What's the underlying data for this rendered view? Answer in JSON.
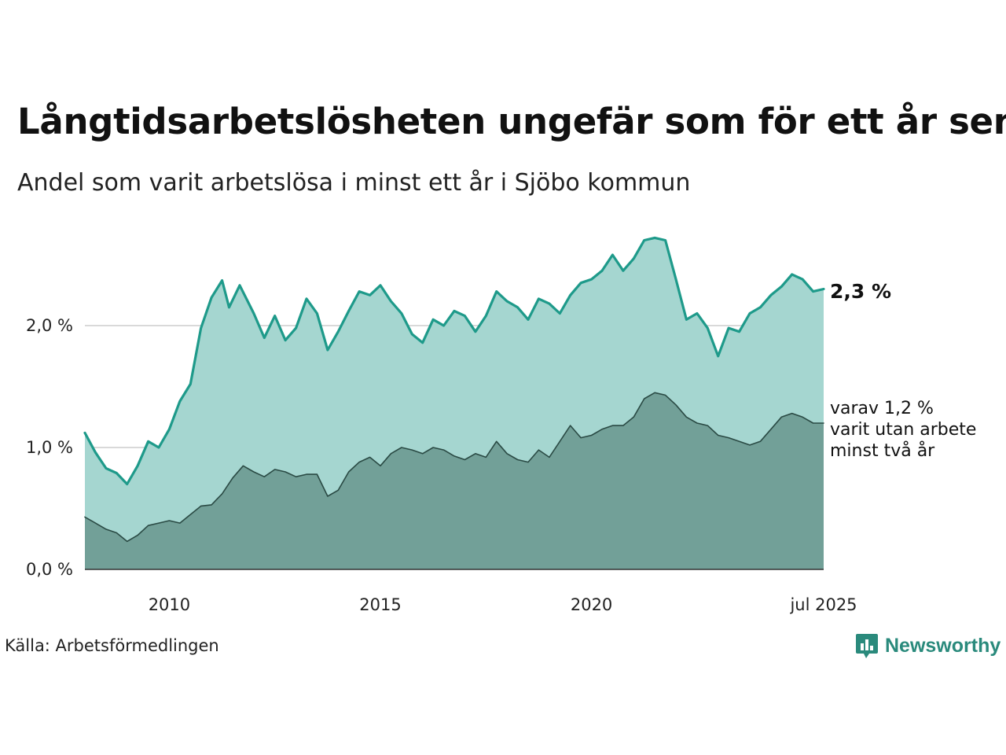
{
  "title": "Långtidsarbetslösheten ungefär som för ett år sen",
  "subtitle": "Andel som varit arbetslösa i minst ett år i Sjöbo kommun",
  "source": "Källa: Arbetsförmedlingen",
  "brand": {
    "name": "Newsworthy",
    "icon": "newsworthy-chart-icon",
    "color": "#2a8a7c"
  },
  "chart_data": {
    "type": "area",
    "xlim": [
      "2008-01",
      "2025-07"
    ],
    "ylim": [
      0,
      2.8
    ],
    "grid": true,
    "y_ticks": [
      {
        "value": 0,
        "label": "0,0 %"
      },
      {
        "value": 1,
        "label": "1,0 %"
      },
      {
        "value": 2,
        "label": "2,0 %"
      }
    ],
    "x_ticks": [
      {
        "value": "2010-01",
        "label": "2010"
      },
      {
        "value": "2015-01",
        "label": "2015"
      },
      {
        "value": "2020-01",
        "label": "2020"
      },
      {
        "value": "2025-07",
        "label": "jul 2025"
      }
    ],
    "end_label": "2,3 %",
    "note_lines": [
      "varav 1,2 %",
      "varit utan arbete",
      "minst två år"
    ],
    "colors": {
      "total_line": "#1e9a8a",
      "total_fill": "#a5d6d0",
      "long_line": "#2a4a44",
      "long_fill": "#72a098"
    },
    "series": [
      {
        "key": "total",
        "points": [
          [
            "2008-01",
            1.12
          ],
          [
            "2008-04",
            0.96
          ],
          [
            "2008-07",
            0.83
          ],
          [
            "2008-10",
            0.79
          ],
          [
            "2009-01",
            0.7
          ],
          [
            "2009-04",
            0.85
          ],
          [
            "2009-07",
            1.05
          ],
          [
            "2009-10",
            1.0
          ],
          [
            "2010-01",
            1.15
          ],
          [
            "2010-04",
            1.38
          ],
          [
            "2010-07",
            1.52
          ],
          [
            "2010-10",
            1.98
          ],
          [
            "2011-01",
            2.23
          ],
          [
            "2011-04",
            2.37
          ],
          [
            "2011-06",
            2.15
          ],
          [
            "2011-09",
            2.33
          ],
          [
            "2012-01",
            2.1
          ],
          [
            "2012-04",
            1.9
          ],
          [
            "2012-07",
            2.08
          ],
          [
            "2012-10",
            1.88
          ],
          [
            "2013-01",
            1.98
          ],
          [
            "2013-04",
            2.22
          ],
          [
            "2013-07",
            2.1
          ],
          [
            "2013-10",
            1.8
          ],
          [
            "2014-01",
            1.95
          ],
          [
            "2014-04",
            2.12
          ],
          [
            "2014-07",
            2.28
          ],
          [
            "2014-10",
            2.25
          ],
          [
            "2015-01",
            2.33
          ],
          [
            "2015-04",
            2.2
          ],
          [
            "2015-07",
            2.1
          ],
          [
            "2015-10",
            1.93
          ],
          [
            "2016-01",
            1.86
          ],
          [
            "2016-04",
            2.05
          ],
          [
            "2016-07",
            2.0
          ],
          [
            "2016-10",
            2.12
          ],
          [
            "2017-01",
            2.08
          ],
          [
            "2017-04",
            1.95
          ],
          [
            "2017-07",
            2.08
          ],
          [
            "2017-10",
            2.28
          ],
          [
            "2018-01",
            2.2
          ],
          [
            "2018-04",
            2.15
          ],
          [
            "2018-07",
            2.05
          ],
          [
            "2018-10",
            2.22
          ],
          [
            "2019-01",
            2.18
          ],
          [
            "2019-04",
            2.1
          ],
          [
            "2019-07",
            2.25
          ],
          [
            "2019-10",
            2.35
          ],
          [
            "2020-01",
            2.38
          ],
          [
            "2020-04",
            2.45
          ],
          [
            "2020-07",
            2.58
          ],
          [
            "2020-10",
            2.45
          ],
          [
            "2021-01",
            2.55
          ],
          [
            "2021-04",
            2.7
          ],
          [
            "2021-07",
            2.72
          ],
          [
            "2021-10",
            2.7
          ],
          [
            "2022-01",
            2.38
          ],
          [
            "2022-04",
            2.05
          ],
          [
            "2022-07",
            2.1
          ],
          [
            "2022-10",
            1.98
          ],
          [
            "2023-01",
            1.75
          ],
          [
            "2023-04",
            1.98
          ],
          [
            "2023-07",
            1.95
          ],
          [
            "2023-10",
            2.1
          ],
          [
            "2024-01",
            2.15
          ],
          [
            "2024-04",
            2.25
          ],
          [
            "2024-07",
            2.32
          ],
          [
            "2024-10",
            2.42
          ],
          [
            "2025-01",
            2.38
          ],
          [
            "2025-04",
            2.28
          ],
          [
            "2025-07",
            2.3
          ]
        ]
      },
      {
        "key": "long",
        "points": [
          [
            "2008-01",
            0.43
          ],
          [
            "2008-04",
            0.38
          ],
          [
            "2008-07",
            0.33
          ],
          [
            "2008-10",
            0.3
          ],
          [
            "2009-01",
            0.23
          ],
          [
            "2009-04",
            0.28
          ],
          [
            "2009-07",
            0.36
          ],
          [
            "2009-10",
            0.38
          ],
          [
            "2010-01",
            0.4
          ],
          [
            "2010-04",
            0.38
          ],
          [
            "2010-07",
            0.45
          ],
          [
            "2010-10",
            0.52
          ],
          [
            "2011-01",
            0.53
          ],
          [
            "2011-04",
            0.62
          ],
          [
            "2011-07",
            0.75
          ],
          [
            "2011-10",
            0.85
          ],
          [
            "2012-01",
            0.8
          ],
          [
            "2012-04",
            0.76
          ],
          [
            "2012-07",
            0.82
          ],
          [
            "2012-10",
            0.8
          ],
          [
            "2013-01",
            0.76
          ],
          [
            "2013-04",
            0.78
          ],
          [
            "2013-07",
            0.78
          ],
          [
            "2013-10",
            0.6
          ],
          [
            "2014-01",
            0.65
          ],
          [
            "2014-04",
            0.8
          ],
          [
            "2014-07",
            0.88
          ],
          [
            "2014-10",
            0.92
          ],
          [
            "2015-01",
            0.85
          ],
          [
            "2015-04",
            0.95
          ],
          [
            "2015-07",
            1.0
          ],
          [
            "2015-10",
            0.98
          ],
          [
            "2016-01",
            0.95
          ],
          [
            "2016-04",
            1.0
          ],
          [
            "2016-07",
            0.98
          ],
          [
            "2016-10",
            0.93
          ],
          [
            "2017-01",
            0.9
          ],
          [
            "2017-04",
            0.95
          ],
          [
            "2017-07",
            0.92
          ],
          [
            "2017-10",
            1.05
          ],
          [
            "2018-01",
            0.95
          ],
          [
            "2018-04",
            0.9
          ],
          [
            "2018-07",
            0.88
          ],
          [
            "2018-10",
            0.98
          ],
          [
            "2019-01",
            0.92
          ],
          [
            "2019-04",
            1.05
          ],
          [
            "2019-07",
            1.18
          ],
          [
            "2019-10",
            1.08
          ],
          [
            "2020-01",
            1.1
          ],
          [
            "2020-04",
            1.15
          ],
          [
            "2020-07",
            1.18
          ],
          [
            "2020-10",
            1.18
          ],
          [
            "2021-01",
            1.25
          ],
          [
            "2021-04",
            1.4
          ],
          [
            "2021-07",
            1.45
          ],
          [
            "2021-10",
            1.43
          ],
          [
            "2022-01",
            1.35
          ],
          [
            "2022-04",
            1.25
          ],
          [
            "2022-07",
            1.2
          ],
          [
            "2022-10",
            1.18
          ],
          [
            "2023-01",
            1.1
          ],
          [
            "2023-04",
            1.08
          ],
          [
            "2023-07",
            1.05
          ],
          [
            "2023-10",
            1.02
          ],
          [
            "2024-01",
            1.05
          ],
          [
            "2024-04",
            1.15
          ],
          [
            "2024-07",
            1.25
          ],
          [
            "2024-10",
            1.28
          ],
          [
            "2025-01",
            1.25
          ],
          [
            "2025-04",
            1.2
          ],
          [
            "2025-07",
            1.2
          ]
        ]
      }
    ]
  }
}
